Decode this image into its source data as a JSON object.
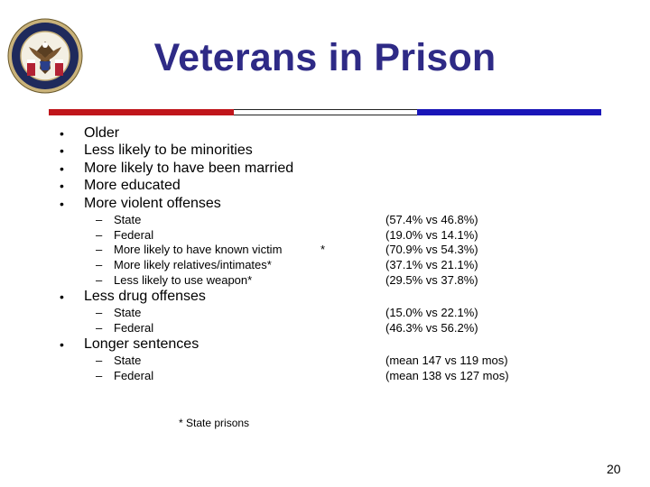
{
  "header": {
    "title": "Veterans in Prison",
    "seal_icon": "department-of-veterans-affairs-seal",
    "rule_colors": [
      "#c0151b",
      "#ffffff",
      "#1a16b8"
    ]
  },
  "bullets": {
    "symbol": "•",
    "dash": "–",
    "b1": "Older",
    "b2": "Less likely to be minorities",
    "b3": "More likely to have been married",
    "b4": "More educated",
    "b5": "More violent offenses",
    "violent": {
      "s1": "State",
      "s2": "Federal",
      "s3": "More likely to have known victim",
      "s4": "More likely relatives/intimates*",
      "s5": "Less likely to use weapon*",
      "marker": "*",
      "v1": "(57.4% vs 46.8%)",
      "v2": "(19.0% vs 14.1%)",
      "v3": "(70.9% vs 54.3%)",
      "v4": "(37.1% vs 21.1%)",
      "v5": "(29.5% vs 37.8%)"
    },
    "b6": "Less drug offenses",
    "drug": {
      "s1": "State",
      "s2": "Federal",
      "v1": "(15.0% vs 22.1%)",
      "v2": "(46.3% vs 56.2%)"
    },
    "b7": "Longer sentences",
    "sentences": {
      "s1": "State",
      "s2": "Federal",
      "v1": "(mean 147 vs 119 mos)",
      "v2": "(mean 138 vs 127 mos)"
    }
  },
  "footnote": "* State prisons",
  "page_number": "20"
}
